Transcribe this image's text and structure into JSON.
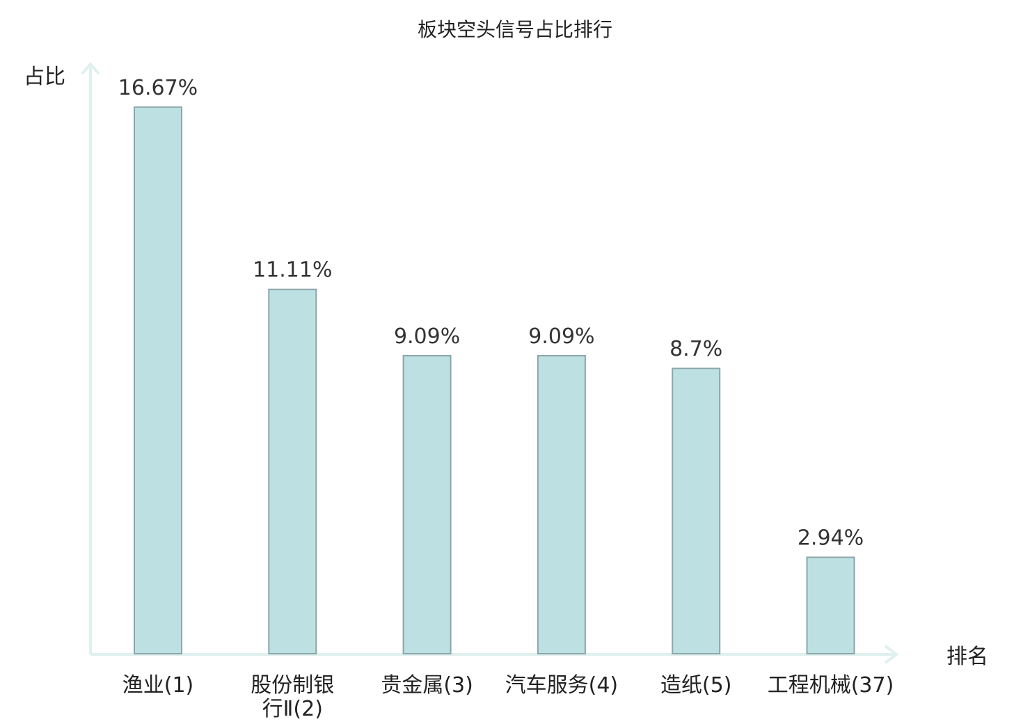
{
  "chart_data": {
    "type": "bar",
    "title": "板块空头信号占比排行",
    "xlabel": "排名",
    "ylabel": "占比",
    "ylim": [
      0,
      18
    ],
    "grid": false,
    "categories": [
      "渔业(1)",
      "股份制银行Ⅱ(2)",
      "贵金属(3)",
      "汽车服务(4)",
      "造纸(5)",
      "工程机械(37)"
    ],
    "category_lines": [
      [
        "渔业(1)"
      ],
      [
        "股份制银",
        "行Ⅱ(2)"
      ],
      [
        "贵金属(3)"
      ],
      [
        "汽车服务(4)"
      ],
      [
        "造纸(5)"
      ],
      [
        "工程机械(37)"
      ]
    ],
    "values": [
      16.67,
      11.11,
      9.09,
      9.09,
      8.7,
      2.94
    ],
    "value_labels": [
      "16.67%",
      "11.11%",
      "9.09%",
      "9.09%",
      "8.7%",
      "2.94%"
    ],
    "highlight_index": 5
  },
  "colors": {
    "bar_fill": "#bde0e3",
    "bar_stroke": "#8aa6a9",
    "axis": "#dff0ee",
    "text": "#222222",
    "highlight": "#e60012"
  }
}
